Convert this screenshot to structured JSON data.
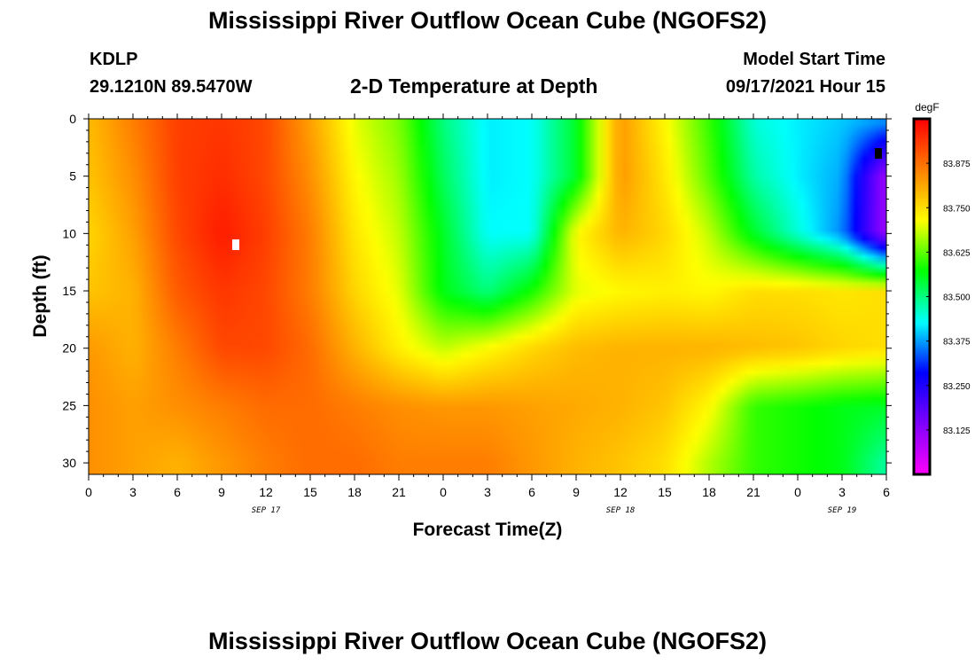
{
  "header": {
    "title": "Mississippi River Outflow Ocean Cube (NGOFS2)",
    "station_id": "KDLP",
    "station_coords": "29.1210N  89.5470W",
    "plot_title": "2-D Temperature at Depth",
    "model_start_label": "Model Start Time",
    "model_start_value": "09/17/2021 Hour 15"
  },
  "footer": {
    "title": "Mississippi River Outflow Ocean Cube (NGOFS2)"
  },
  "chart_data": {
    "type": "heatmap",
    "title": "2-D Temperature at Depth",
    "xlabel": "Forecast Time(Z)",
    "ylabel": "Depth (ft)",
    "x_range_hours": [
      0,
      54
    ],
    "x_ticks": [
      "0",
      "3",
      "6",
      "9",
      "12",
      "15",
      "18",
      "21",
      "0",
      "3",
      "6",
      "9",
      "12",
      "15",
      "18",
      "21",
      "0",
      "3",
      "6"
    ],
    "date_labels": [
      {
        "label": "SEP 17",
        "hour": 12
      },
      {
        "label": "SEP 18",
        "hour": 36
      },
      {
        "label": "SEP 19",
        "hour": 51
      }
    ],
    "ylim": [
      0,
      31
    ],
    "y_ticks": [
      0,
      5,
      10,
      15,
      20,
      25,
      30
    ],
    "y_reversed": true,
    "colorbar": {
      "unit": "degF",
      "min": 83.0,
      "max": 84.0,
      "ticks": [
        "83.875",
        "83.750",
        "83.625",
        "83.500",
        "83.375",
        "83.250",
        "83.125"
      ],
      "colors": [
        "#ff00ff",
        "#8000ff",
        "#0000ff",
        "#00ffff",
        "#00ff00",
        "#ffff00",
        "#ff8000",
        "#ff0000"
      ]
    },
    "x_hours": [
      0,
      3,
      6,
      9,
      12,
      15,
      18,
      21,
      24,
      27,
      30,
      33,
      36,
      39,
      42,
      45,
      48,
      51,
      54
    ],
    "depths_ft": [
      0,
      5,
      10,
      15,
      20,
      25,
      30
    ],
    "values_degF": [
      [
        83.79,
        83.86,
        83.93,
        83.94,
        83.92,
        83.82,
        83.7,
        83.64,
        83.5,
        83.42,
        83.43,
        83.55,
        83.83,
        83.72,
        83.6,
        83.45,
        83.42,
        83.4,
        83.38
      ],
      [
        83.78,
        83.84,
        83.93,
        83.95,
        83.92,
        83.84,
        83.72,
        83.66,
        83.52,
        83.42,
        83.43,
        83.55,
        83.83,
        83.74,
        83.62,
        83.48,
        83.42,
        83.38,
        83.1
      ],
      [
        83.76,
        83.82,
        83.92,
        83.97,
        83.93,
        83.86,
        83.74,
        83.68,
        83.55,
        83.43,
        83.43,
        83.72,
        83.8,
        83.76,
        83.68,
        83.55,
        83.45,
        83.36,
        83.1
      ],
      [
        83.78,
        83.8,
        83.9,
        83.94,
        83.92,
        83.86,
        83.76,
        83.7,
        83.56,
        83.5,
        83.58,
        83.7,
        83.72,
        83.73,
        83.72,
        83.75,
        83.75,
        83.74,
        83.75
      ],
      [
        83.83,
        83.8,
        83.86,
        83.92,
        83.92,
        83.88,
        83.8,
        83.73,
        83.68,
        83.72,
        83.76,
        83.79,
        83.8,
        83.8,
        83.8,
        83.79,
        83.78,
        83.76,
        83.75
      ],
      [
        83.84,
        83.82,
        83.84,
        83.86,
        83.88,
        83.88,
        83.86,
        83.84,
        83.83,
        83.83,
        83.82,
        83.81,
        83.8,
        83.78,
        83.72,
        83.6,
        83.58,
        83.56,
        83.55
      ],
      [
        83.84,
        83.82,
        83.8,
        83.83,
        83.86,
        83.88,
        83.88,
        83.86,
        83.86,
        83.86,
        83.83,
        83.8,
        83.78,
        83.75,
        83.67,
        83.6,
        83.58,
        83.56,
        83.48
      ]
    ]
  }
}
